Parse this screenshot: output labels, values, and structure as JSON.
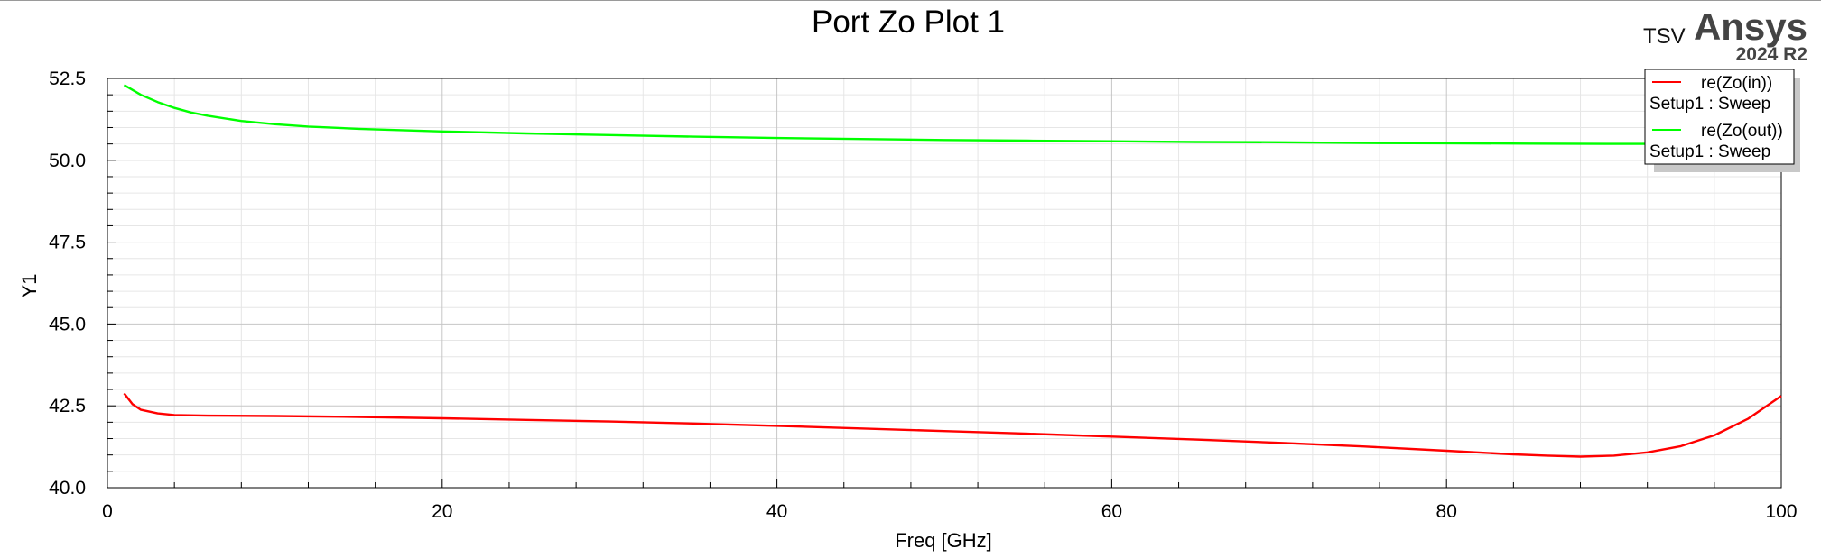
{
  "chart_data": {
    "type": "line",
    "title": "Port Zo Plot 1",
    "xlabel": "Freq [GHz]",
    "ylabel": "Y1",
    "xlim": [
      0,
      100
    ],
    "ylim": [
      40.0,
      52.5
    ],
    "x_ticks": [
      "0",
      "20",
      "40",
      "60",
      "80",
      "100"
    ],
    "y_ticks": [
      "40.0",
      "42.5",
      "45.0",
      "47.5",
      "50.0",
      "52.5"
    ],
    "grid": true,
    "legend_position": "top-right",
    "series": [
      {
        "name": "re(Zo(in))",
        "subtitle": "Setup1 : Sweep",
        "color": "#ff0000",
        "x": [
          1,
          1.5,
          2,
          3,
          4,
          6,
          10,
          15,
          20,
          25,
          30,
          35,
          40,
          45,
          50,
          55,
          60,
          65,
          70,
          75,
          80,
          84,
          86,
          88,
          90,
          92,
          94,
          96,
          98,
          100
        ],
        "y": [
          42.88,
          42.55,
          42.38,
          42.27,
          42.22,
          42.2,
          42.19,
          42.16,
          42.12,
          42.07,
          42.02,
          41.96,
          41.89,
          41.81,
          41.73,
          41.65,
          41.56,
          41.47,
          41.37,
          41.26,
          41.13,
          41.02,
          40.98,
          40.95,
          40.98,
          41.08,
          41.27,
          41.6,
          42.1,
          42.8
        ]
      },
      {
        "name": "re(Zo(out))",
        "subtitle": "Setup1 : Sweep",
        "color": "#00ff00",
        "x": [
          1,
          2,
          3,
          4,
          5,
          6,
          8,
          10,
          12,
          15,
          20,
          25,
          30,
          35,
          40,
          45,
          50,
          55,
          60,
          65,
          70,
          75,
          80,
          85,
          90,
          95
        ],
        "y": [
          52.3,
          52.0,
          51.78,
          51.6,
          51.46,
          51.36,
          51.2,
          51.1,
          51.03,
          50.96,
          50.88,
          50.82,
          50.77,
          50.72,
          50.68,
          50.65,
          50.62,
          50.6,
          50.58,
          50.56,
          50.55,
          50.53,
          50.52,
          50.51,
          50.5,
          50.5
        ]
      }
    ]
  },
  "branding": {
    "product": "TSV",
    "name": "Ansys",
    "version": "2024 R2"
  }
}
